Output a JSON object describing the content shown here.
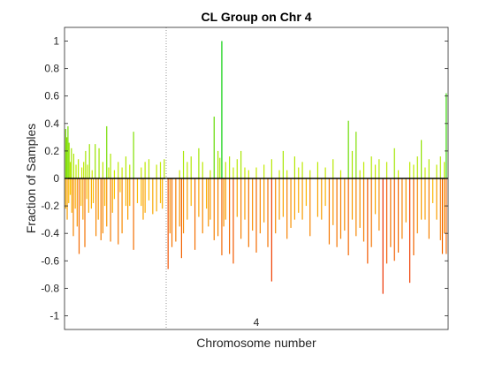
{
  "chart_data": {
    "type": "bar",
    "title": "CL Group on Chr 4",
    "xlabel": "Chromosome number",
    "ylabel": "Fraction of Samples",
    "ylim": [
      -1.1,
      1.1
    ],
    "yticks": [
      -1,
      -0.8,
      -0.6,
      -0.4,
      -0.2,
      0,
      0.2,
      0.4,
      0.6,
      0.8,
      1
    ],
    "ytick_labels": [
      "-1",
      "-0.8",
      "-0.6",
      "-0.4",
      "-0.2",
      "0",
      "0.2",
      "0.4",
      "0.6",
      "0.8",
      "1"
    ],
    "xlim": [
      0,
      1
    ],
    "xtick_label": "4",
    "xtick_position": 0.5,
    "centromere_position": 0.265,
    "grid": false,
    "colors": {
      "gain_low": "#ddee00",
      "gain_high": "#00cc00",
      "loss_low": "#ffdd00",
      "loss_high": "#ee3300",
      "axis": "#262626",
      "zero_line": "#000000",
      "centromere": "#999999"
    },
    "series": [
      {
        "role": "gain",
        "x": [
          0.003,
          0.006,
          0.009,
          0.012,
          0.015,
          0.018,
          0.024,
          0.03,
          0.036,
          0.045,
          0.05,
          0.055,
          0.06,
          0.065,
          0.072,
          0.08,
          0.09,
          0.1,
          0.11,
          0.115,
          0.12,
          0.13,
          0.14,
          0.15,
          0.16,
          0.17,
          0.18,
          0.2,
          0.21,
          0.22,
          0.24,
          0.25,
          0.26,
          0.3,
          0.31,
          0.32,
          0.33,
          0.35,
          0.36,
          0.38,
          0.39,
          0.4,
          0.405,
          0.41,
          0.42,
          0.43,
          0.44,
          0.45,
          0.46,
          0.47,
          0.48,
          0.5,
          0.52,
          0.54,
          0.56,
          0.57,
          0.58,
          0.6,
          0.61,
          0.62,
          0.64,
          0.66,
          0.68,
          0.7,
          0.72,
          0.74,
          0.75,
          0.76,
          0.77,
          0.78,
          0.8,
          0.81,
          0.82,
          0.84,
          0.86,
          0.87,
          0.9,
          0.91,
          0.92,
          0.93,
          0.94,
          0.95,
          0.97,
          0.98,
          0.99,
          0.995
        ],
        "values": [
          0.36,
          0.3,
          0.38,
          0.26,
          0.12,
          0.22,
          0.18,
          0.1,
          0.14,
          0.08,
          0.12,
          0.2,
          0.1,
          0.25,
          0.06,
          0.25,
          0.22,
          0.12,
          0.38,
          0.08,
          0.18,
          0.06,
          0.12,
          0.08,
          0.16,
          0.1,
          0.34,
          0.08,
          0.12,
          0.14,
          0.1,
          0.12,
          0.14,
          0.06,
          0.2,
          0.12,
          0.16,
          0.22,
          0.12,
          0.06,
          0.45,
          0.2,
          0.15,
          1.0,
          0.12,
          0.16,
          0.08,
          0.14,
          0.2,
          0.08,
          0.06,
          0.08,
          0.1,
          0.14,
          0.06,
          0.2,
          0.06,
          0.16,
          0.08,
          0.12,
          0.06,
          0.12,
          0.08,
          0.14,
          0.06,
          0.42,
          0.2,
          0.34,
          0.06,
          0.12,
          0.16,
          0.1,
          0.14,
          0.12,
          0.22,
          0.06,
          0.12,
          0.1,
          0.16,
          0.28,
          0.08,
          0.14,
          0.1,
          0.16,
          0.12,
          0.62
        ]
      },
      {
        "role": "loss",
        "x": [
          0.003,
          0.007,
          0.011,
          0.015,
          0.019,
          0.023,
          0.028,
          0.033,
          0.038,
          0.043,
          0.048,
          0.053,
          0.058,
          0.063,
          0.07,
          0.075,
          0.082,
          0.088,
          0.095,
          0.1,
          0.105,
          0.11,
          0.12,
          0.125,
          0.13,
          0.14,
          0.145,
          0.15,
          0.16,
          0.165,
          0.17,
          0.18,
          0.19,
          0.2,
          0.205,
          0.21,
          0.22,
          0.23,
          0.24,
          0.25,
          0.255,
          0.27,
          0.275,
          0.28,
          0.29,
          0.3,
          0.305,
          0.31,
          0.32,
          0.33,
          0.34,
          0.35,
          0.36,
          0.37,
          0.375,
          0.38,
          0.39,
          0.4,
          0.41,
          0.415,
          0.42,
          0.43,
          0.44,
          0.45,
          0.46,
          0.47,
          0.48,
          0.49,
          0.5,
          0.51,
          0.52,
          0.53,
          0.54,
          0.55,
          0.56,
          0.57,
          0.58,
          0.59,
          0.6,
          0.61,
          0.62,
          0.63,
          0.64,
          0.66,
          0.67,
          0.68,
          0.69,
          0.7,
          0.71,
          0.72,
          0.73,
          0.74,
          0.75,
          0.76,
          0.77,
          0.78,
          0.79,
          0.8,
          0.81,
          0.82,
          0.83,
          0.84,
          0.85,
          0.86,
          0.87,
          0.88,
          0.89,
          0.9,
          0.91,
          0.92,
          0.93,
          0.94,
          0.95,
          0.96,
          0.97,
          0.98,
          0.985,
          0.99,
          0.995
        ],
        "values": [
          -0.22,
          -0.3,
          -0.18,
          -0.12,
          -0.25,
          -0.42,
          -0.22,
          -0.35,
          -0.55,
          -0.2,
          -0.3,
          -0.5,
          -0.15,
          -0.25,
          -0.22,
          -0.18,
          -0.42,
          -0.3,
          -0.45,
          -0.4,
          -0.2,
          -0.35,
          -0.46,
          -0.25,
          -0.15,
          -0.48,
          -0.1,
          -0.4,
          -0.2,
          -0.3,
          -0.2,
          -0.52,
          -0.18,
          -0.2,
          -0.3,
          -0.25,
          -0.16,
          -0.26,
          -0.24,
          -0.18,
          -0.22,
          -0.66,
          -0.4,
          -0.5,
          -0.46,
          -0.35,
          -0.58,
          -0.4,
          -0.3,
          -0.2,
          -0.52,
          -0.28,
          -0.4,
          -0.22,
          -0.35,
          -0.3,
          -0.45,
          -0.42,
          -0.56,
          -0.35,
          -0.3,
          -0.55,
          -0.62,
          -0.28,
          -0.44,
          -0.3,
          -0.5,
          -0.38,
          -0.54,
          -0.4,
          -0.32,
          -0.5,
          -0.75,
          -0.4,
          -0.3,
          -0.28,
          -0.44,
          -0.36,
          -0.3,
          -0.25,
          -0.3,
          -0.2,
          -0.42,
          -0.28,
          -0.3,
          -0.2,
          -0.48,
          -0.34,
          -0.5,
          -0.44,
          -0.38,
          -0.56,
          -0.3,
          -0.42,
          -0.36,
          -0.46,
          -0.62,
          -0.5,
          -0.26,
          -0.38,
          -0.84,
          -0.62,
          -0.5,
          -0.6,
          -0.54,
          -0.44,
          -0.32,
          -0.76,
          -0.56,
          -0.4,
          -0.3,
          -0.3,
          -0.44,
          -0.18,
          -0.3,
          -0.45,
          -0.55,
          -0.4,
          -0.55
        ]
      }
    ]
  }
}
